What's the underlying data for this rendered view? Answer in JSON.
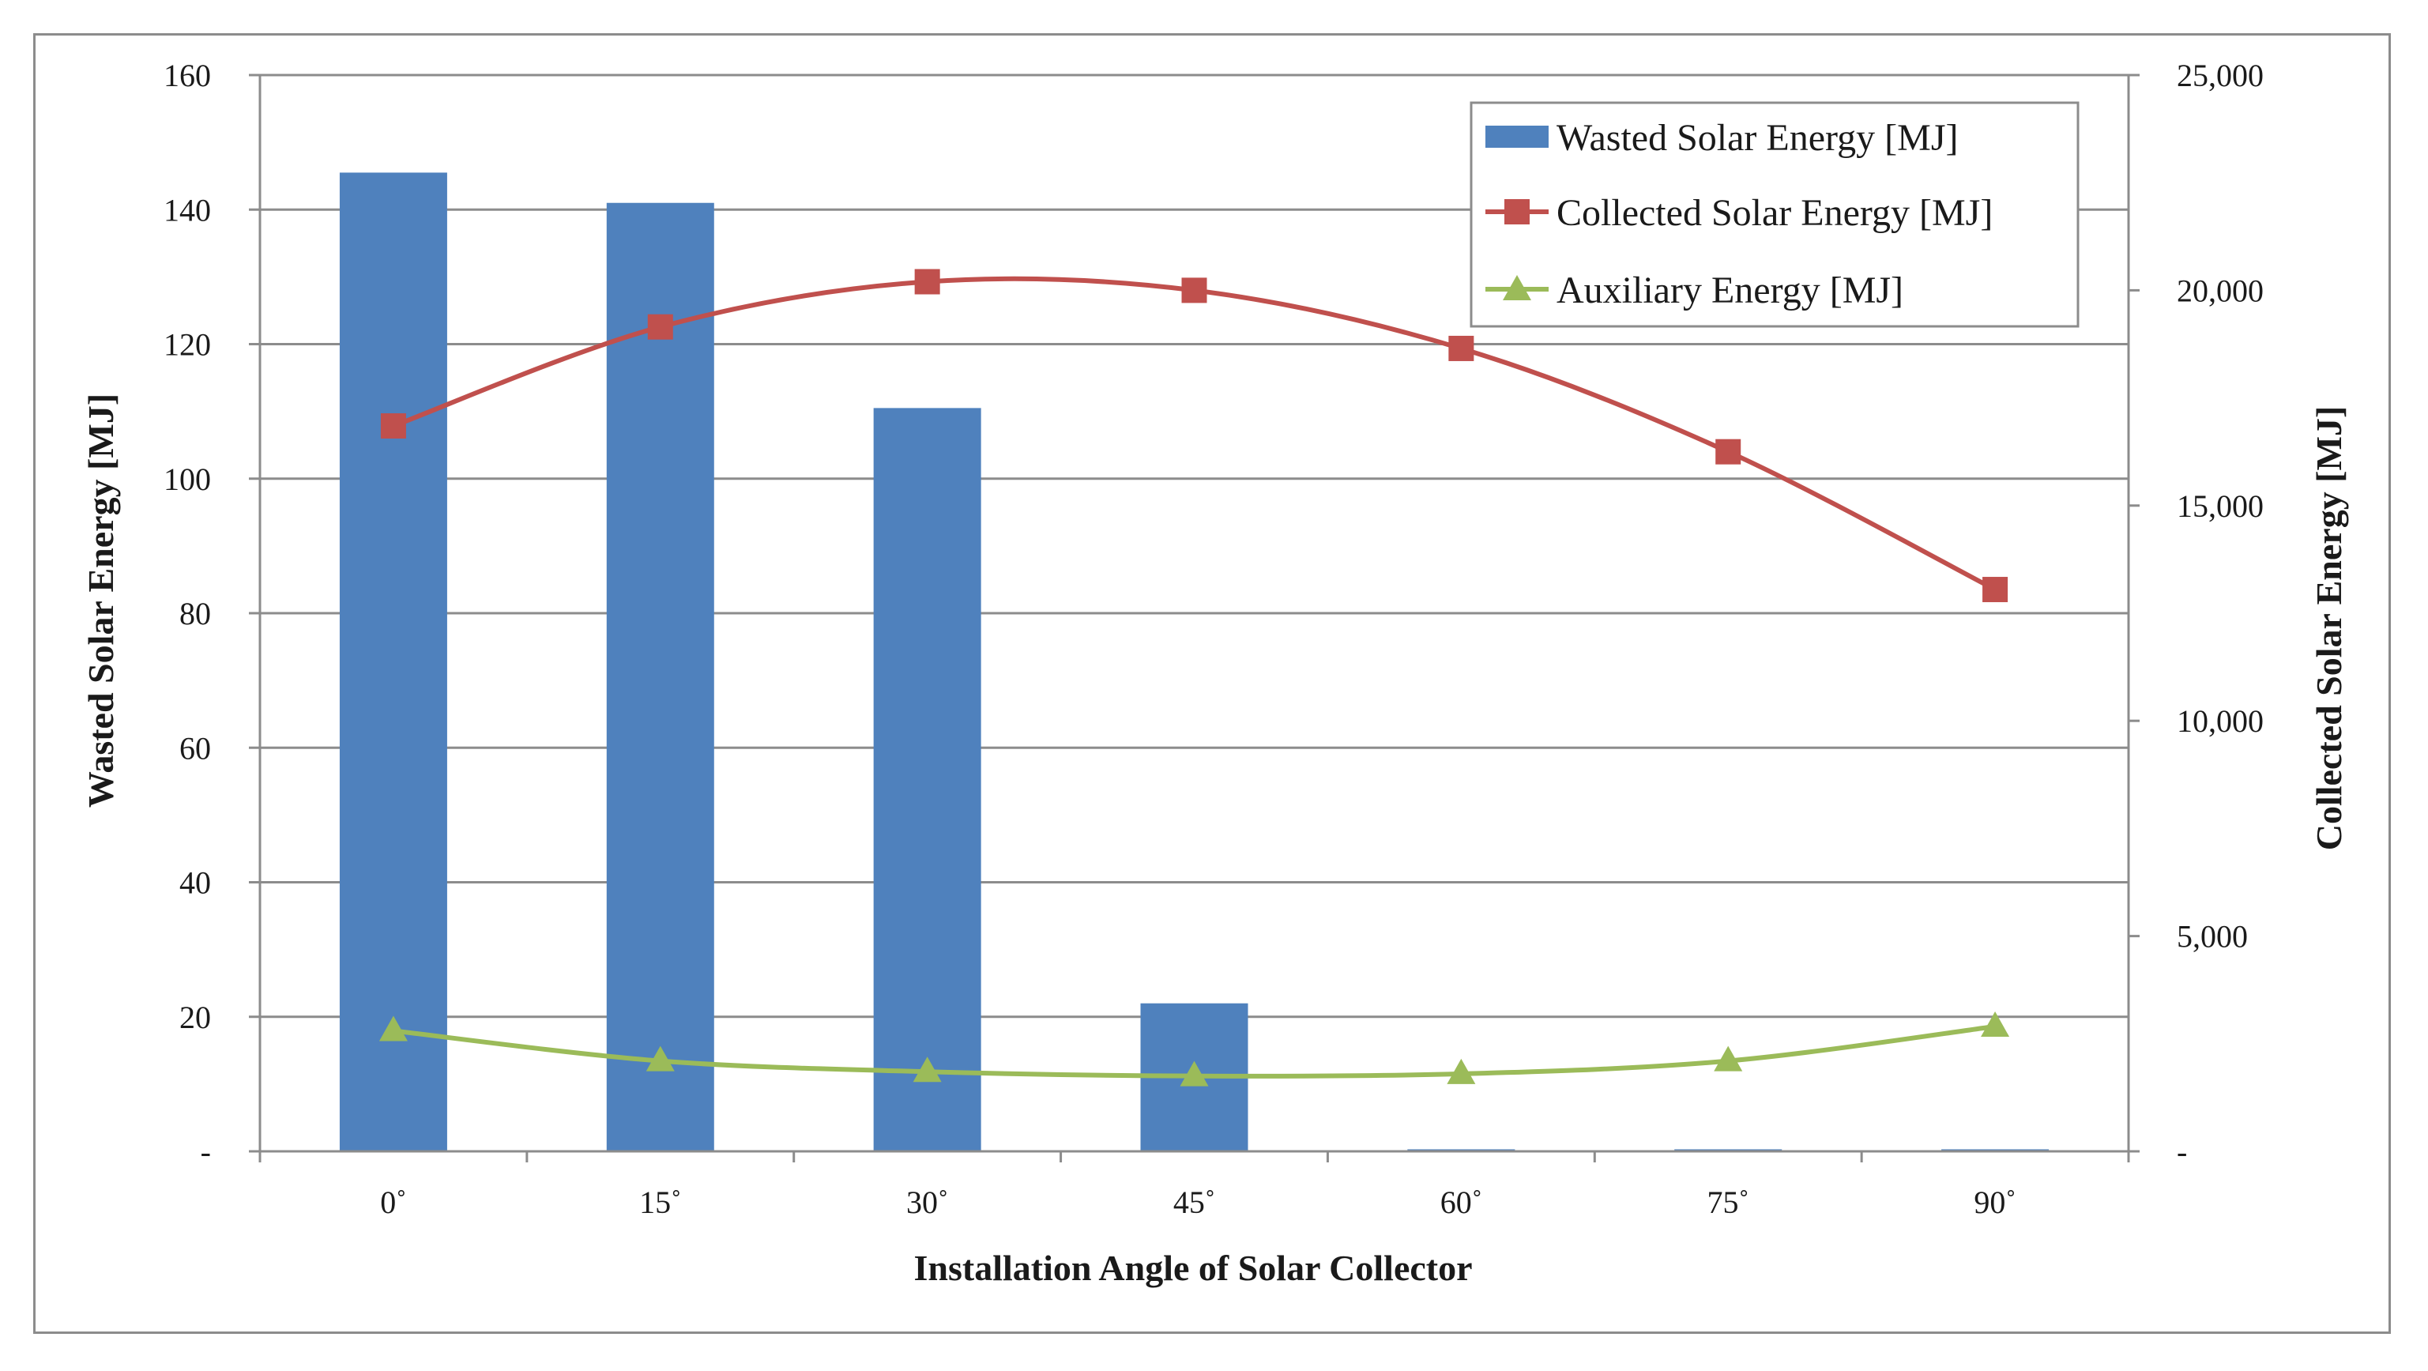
{
  "chart_data": {
    "type": "bar+line",
    "categories": [
      "0˚",
      "15˚",
      "30˚",
      "45˚",
      "60˚",
      "75˚",
      "90˚"
    ],
    "xlabel": "Installation  Angle  of Solar Collector",
    "ylabel": "Wasted Solar Energy [MJ]",
    "y2label": "Collected Solar Energy [MJ]",
    "ylim": [
      0,
      160
    ],
    "y2lim": [
      0,
      25000
    ],
    "y_ticks": [
      "-",
      "20",
      "40",
      "60",
      "80",
      "100",
      "120",
      "140",
      "160"
    ],
    "y2_ticks": [
      "-",
      "5,000",
      "10,000",
      "15,000",
      "20,000",
      "25,000"
    ],
    "grid": true,
    "legend_position": "top-right",
    "series": [
      {
        "name": "Wasted Solar Energy [MJ]",
        "type": "bar",
        "axis": "left",
        "color": "#4f81bd",
        "values": [
          145.5,
          141,
          110.5,
          22,
          0.3,
          0.3,
          0.3
        ]
      },
      {
        "name": "Collected Solar Energy [MJ]",
        "type": "line",
        "axis": "right",
        "marker": "square",
        "color": "#c0504d",
        "values": [
          16850,
          19150,
          20200,
          20000,
          18650,
          16250,
          13050
        ]
      },
      {
        "name": "Auxiliary Energy [MJ]",
        "type": "line",
        "axis": "right",
        "marker": "triangle",
        "color": "#9bbb59",
        "values": [
          2800,
          2100,
          1850,
          1750,
          1800,
          2100,
          2900
        ]
      }
    ]
  }
}
